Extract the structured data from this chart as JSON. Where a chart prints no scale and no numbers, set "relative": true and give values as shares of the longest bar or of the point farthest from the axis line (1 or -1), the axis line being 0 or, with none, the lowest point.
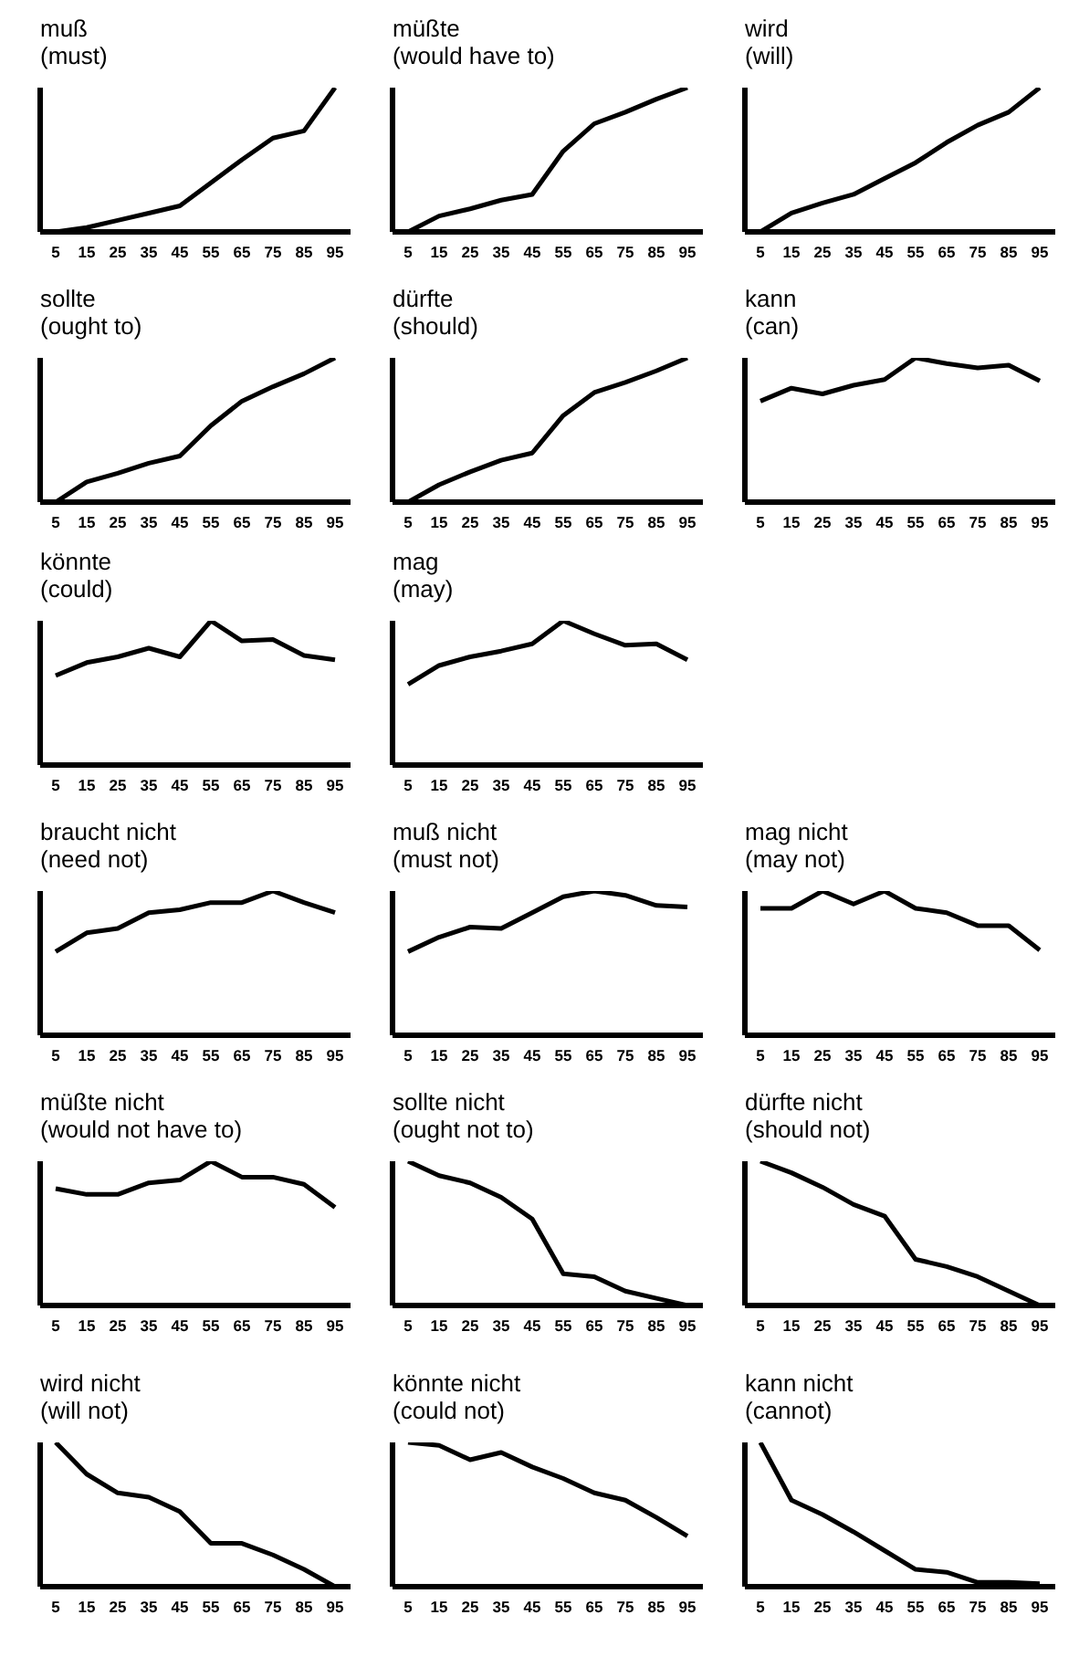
{
  "chart_data": [
    {
      "type": "line",
      "title": "muß",
      "subtitle": "(must)",
      "relative": true,
      "x": [
        5,
        15,
        25,
        35,
        45,
        55,
        65,
        75,
        85,
        95
      ],
      "xlim": [
        0,
        100
      ],
      "xticks": [
        5,
        15,
        25,
        35,
        45,
        55,
        65,
        75,
        85,
        95
      ],
      "color": "#000000",
      "values": [
        0,
        0.03,
        0.08,
        0.13,
        0.18,
        0.34,
        0.5,
        0.65,
        0.7,
        1
      ]
    },
    {
      "type": "line",
      "title": "müßte",
      "subtitle": "(would have to)",
      "relative": true,
      "x": [
        5,
        15,
        25,
        35,
        45,
        55,
        65,
        75,
        85,
        95
      ],
      "xlim": [
        0,
        100
      ],
      "xticks": [
        5,
        15,
        25,
        35,
        45,
        55,
        65,
        75,
        85,
        95
      ],
      "color": "#000000",
      "values": [
        0,
        0.11,
        0.16,
        0.22,
        0.26,
        0.56,
        0.75,
        0.83,
        0.92,
        1
      ]
    },
    {
      "type": "line",
      "title": "wird",
      "subtitle": "(will)",
      "relative": true,
      "x": [
        5,
        15,
        25,
        35,
        45,
        55,
        65,
        75,
        85,
        95
      ],
      "xlim": [
        0,
        100
      ],
      "xticks": [
        5,
        15,
        25,
        35,
        45,
        55,
        65,
        75,
        85,
        95
      ],
      "color": "#000000",
      "values": [
        0,
        0.13,
        0.2,
        0.26,
        0.37,
        0.48,
        0.62,
        0.74,
        0.83,
        1
      ]
    },
    {
      "type": "line",
      "title": "sollte",
      "subtitle": "(ought to)",
      "relative": true,
      "x": [
        5,
        15,
        25,
        35,
        45,
        55,
        65,
        75,
        85,
        95
      ],
      "xlim": [
        0,
        100
      ],
      "xticks": [
        5,
        15,
        25,
        35,
        45,
        55,
        65,
        75,
        85,
        95
      ],
      "color": "#000000",
      "values": [
        0,
        0.14,
        0.2,
        0.27,
        0.32,
        0.53,
        0.7,
        0.8,
        0.89,
        1
      ]
    },
    {
      "type": "line",
      "title": "dürfte",
      "subtitle": "(should)",
      "relative": true,
      "x": [
        5,
        15,
        25,
        35,
        45,
        55,
        65,
        75,
        85,
        95
      ],
      "xlim": [
        0,
        100
      ],
      "xticks": [
        5,
        15,
        25,
        35,
        45,
        55,
        65,
        75,
        85,
        95
      ],
      "color": "#000000",
      "values": [
        0,
        0.12,
        0.21,
        0.29,
        0.34,
        0.6,
        0.76,
        0.83,
        0.91,
        1
      ]
    },
    {
      "type": "line",
      "title": "kann",
      "subtitle": "(can)",
      "relative": true,
      "x": [
        5,
        15,
        25,
        35,
        45,
        55,
        65,
        75,
        85,
        95
      ],
      "xlim": [
        0,
        100
      ],
      "xticks": [
        5,
        15,
        25,
        35,
        45,
        55,
        65,
        75,
        85,
        95
      ],
      "color": "#000000",
      "values": [
        0.7,
        0.79,
        0.75,
        0.81,
        0.85,
        1,
        0.96,
        0.93,
        0.95,
        0.84
      ]
    },
    {
      "type": "line",
      "title": "könnte",
      "subtitle": "(could)",
      "relative": true,
      "x": [
        5,
        15,
        25,
        35,
        45,
        55,
        65,
        75,
        85,
        95
      ],
      "xlim": [
        0,
        100
      ],
      "xticks": [
        5,
        15,
        25,
        35,
        45,
        55,
        65,
        75,
        85,
        95
      ],
      "color": "#000000",
      "values": [
        0.62,
        0.71,
        0.75,
        0.81,
        0.75,
        1,
        0.86,
        0.87,
        0.76,
        0.73
      ]
    },
    {
      "type": "line",
      "title": "mag",
      "subtitle": "(may)",
      "relative": true,
      "x": [
        5,
        15,
        25,
        35,
        45,
        55,
        65,
        75,
        85,
        95
      ],
      "xlim": [
        0,
        100
      ],
      "xticks": [
        5,
        15,
        25,
        35,
        45,
        55,
        65,
        75,
        85,
        95
      ],
      "color": "#000000",
      "values": [
        0.56,
        0.69,
        0.75,
        0.79,
        0.84,
        1,
        0.91,
        0.83,
        0.84,
        0.73
      ]
    },
    {
      "type": "line",
      "title": "braucht nicht",
      "subtitle": "(need not)",
      "relative": true,
      "x": [
        5,
        15,
        25,
        35,
        45,
        55,
        65,
        75,
        85,
        95
      ],
      "xlim": [
        0,
        100
      ],
      "xticks": [
        5,
        15,
        25,
        35,
        45,
        55,
        65,
        75,
        85,
        95
      ],
      "color": "#000000",
      "values": [
        0.58,
        0.71,
        0.74,
        0.85,
        0.87,
        0.92,
        0.92,
        1,
        0.92,
        0.85
      ]
    },
    {
      "type": "line",
      "title": "muß nicht",
      "subtitle": "(must not)",
      "relative": true,
      "x": [
        5,
        15,
        25,
        35,
        45,
        55,
        65,
        75,
        85,
        95
      ],
      "xlim": [
        0,
        100
      ],
      "xticks": [
        5,
        15,
        25,
        35,
        45,
        55,
        65,
        75,
        85,
        95
      ],
      "color": "#000000",
      "values": [
        0.58,
        0.68,
        0.75,
        0.74,
        0.85,
        0.96,
        1,
        0.97,
        0.9,
        0.89
      ]
    },
    {
      "type": "line",
      "title": "mag nicht",
      "subtitle": "(may not)",
      "relative": true,
      "x": [
        5,
        15,
        25,
        35,
        45,
        55,
        65,
        75,
        85,
        95
      ],
      "xlim": [
        0,
        100
      ],
      "xticks": [
        5,
        15,
        25,
        35,
        45,
        55,
        65,
        75,
        85,
        95
      ],
      "color": "#000000",
      "values": [
        0.88,
        0.88,
        1,
        0.91,
        1,
        0.88,
        0.85,
        0.76,
        0.76,
        0.59
      ]
    },
    {
      "type": "line",
      "title": "müßte nicht",
      "subtitle": "(would not have to)",
      "relative": true,
      "x": [
        5,
        15,
        25,
        35,
        45,
        55,
        65,
        75,
        85,
        95
      ],
      "xlim": [
        0,
        100
      ],
      "xticks": [
        5,
        15,
        25,
        35,
        45,
        55,
        65,
        75,
        85,
        95
      ],
      "color": "#000000",
      "values": [
        0.81,
        0.77,
        0.77,
        0.85,
        0.87,
        1,
        0.89,
        0.89,
        0.84,
        0.68
      ]
    },
    {
      "type": "line",
      "title": "sollte nicht",
      "subtitle": "(ought not to)",
      "relative": true,
      "x": [
        5,
        15,
        25,
        35,
        45,
        55,
        65,
        75,
        85,
        95
      ],
      "xlim": [
        0,
        100
      ],
      "xticks": [
        5,
        15,
        25,
        35,
        45,
        55,
        65,
        75,
        85,
        95
      ],
      "color": "#000000",
      "values": [
        1,
        0.9,
        0.85,
        0.75,
        0.6,
        0.22,
        0.2,
        0.1,
        0.05,
        0
      ]
    },
    {
      "type": "line",
      "title": "dürfte nicht",
      "subtitle": "(should not)",
      "relative": true,
      "x": [
        5,
        15,
        25,
        35,
        45,
        55,
        65,
        75,
        85,
        95
      ],
      "xlim": [
        0,
        100
      ],
      "xticks": [
        5,
        15,
        25,
        35,
        45,
        55,
        65,
        75,
        85,
        95
      ],
      "color": "#000000",
      "values": [
        1,
        0.92,
        0.82,
        0.7,
        0.62,
        0.32,
        0.27,
        0.2,
        0.1,
        0
      ]
    },
    {
      "type": "line",
      "title": "wird nicht",
      "subtitle": "(will not)",
      "relative": true,
      "x": [
        5,
        15,
        25,
        35,
        45,
        55,
        65,
        75,
        85,
        95
      ],
      "xlim": [
        0,
        100
      ],
      "xticks": [
        5,
        15,
        25,
        35,
        45,
        55,
        65,
        75,
        85,
        95
      ],
      "color": "#000000",
      "values": [
        1,
        0.78,
        0.65,
        0.62,
        0.52,
        0.3,
        0.3,
        0.22,
        0.12,
        0
      ]
    },
    {
      "type": "line",
      "title": "könnte nicht",
      "subtitle": "(could not)",
      "relative": true,
      "x": [
        5,
        15,
        25,
        35,
        45,
        55,
        65,
        75,
        85,
        95
      ],
      "xlim": [
        0,
        100
      ],
      "xticks": [
        5,
        15,
        25,
        35,
        45,
        55,
        65,
        75,
        85,
        95
      ],
      "color": "#000000",
      "values": [
        1,
        0.98,
        0.88,
        0.93,
        0.83,
        0.75,
        0.65,
        0.6,
        0.48,
        0.35
      ]
    },
    {
      "type": "line",
      "title": "kann nicht",
      "subtitle": "(cannot)",
      "relative": true,
      "x": [
        5,
        15,
        25,
        35,
        45,
        55,
        65,
        75,
        85,
        95
      ],
      "xlim": [
        0,
        100
      ],
      "xticks": [
        5,
        15,
        25,
        35,
        45,
        55,
        65,
        75,
        85,
        95
      ],
      "color": "#000000",
      "values": [
        1,
        0.6,
        0.5,
        0.38,
        0.25,
        0.12,
        0.1,
        0.03,
        0.03,
        0.02
      ]
    }
  ]
}
